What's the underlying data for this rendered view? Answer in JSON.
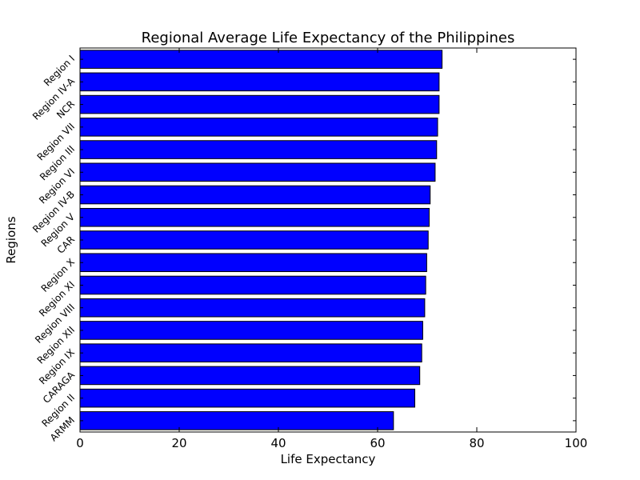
{
  "chart_data": {
    "type": "bar",
    "orientation": "horizontal",
    "title": "Regional Average Life Expectancy of the Philippines",
    "xlabel": "Life Expectancy",
    "ylabel": "Regions",
    "xlim": [
      0,
      100
    ],
    "x_ticks": [
      "0",
      "20",
      "40",
      "60",
      "80",
      "100"
    ],
    "categories": [
      "Region I",
      "Region IV-A",
      "NCR",
      "Region VII",
      "Region III",
      "Region VI",
      "Region IV-B",
      "Region V",
      "CAR",
      "Region X",
      "Region XI",
      "Region VIII",
      "Region XII",
      "Region IX",
      "CARAGA",
      "Region II",
      "ARMM"
    ],
    "values": [
      73.0,
      72.4,
      72.4,
      72.1,
      71.9,
      71.6,
      70.6,
      70.4,
      70.2,
      69.9,
      69.7,
      69.5,
      69.1,
      68.9,
      68.5,
      67.5,
      63.2
    ],
    "bar_color": "#0000ff",
    "grid": false,
    "legend": "none"
  }
}
